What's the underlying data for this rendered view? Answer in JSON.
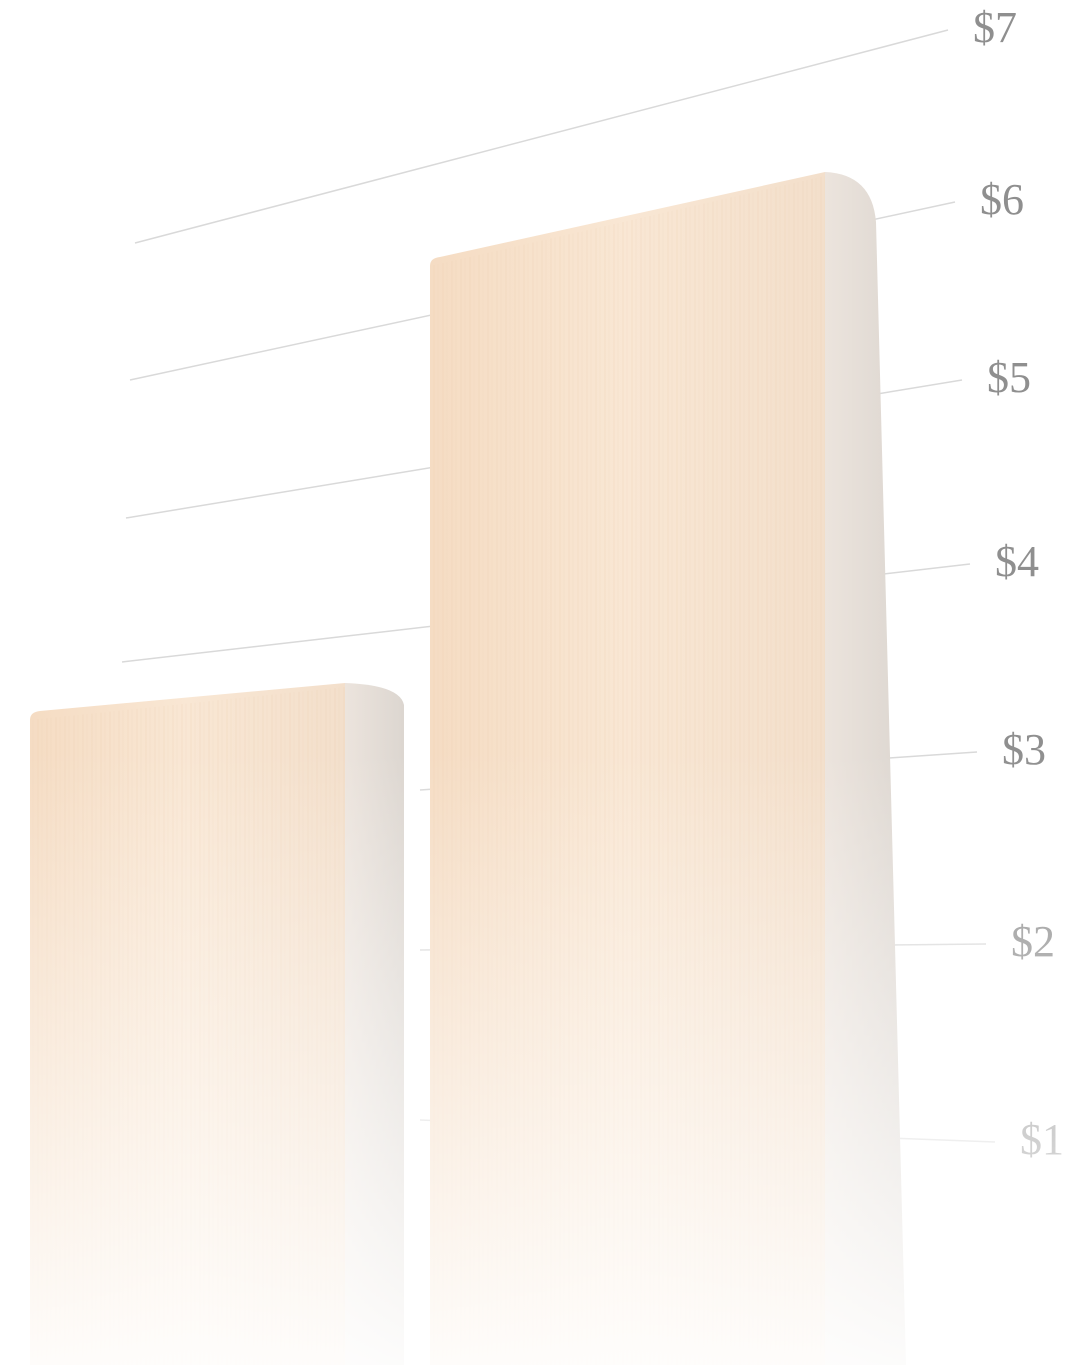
{
  "chart_data": {
    "type": "bar",
    "title": "",
    "xlabel": "",
    "ylabel": "",
    "categories": [
      "",
      ""
    ],
    "values": [
      3.5,
      6.2
    ],
    "y_ticks": [
      "$1",
      "$2",
      "$3",
      "$4",
      "$5",
      "$6",
      "$7"
    ],
    "ylim": [
      0,
      7
    ],
    "grid": true,
    "legend": "none",
    "colors": {
      "bar_fill": "#f7e6d4",
      "bar_side": "#e4dcd5",
      "grid_line": "#d9d9d9",
      "tick_label": "#8f8f8f"
    }
  }
}
